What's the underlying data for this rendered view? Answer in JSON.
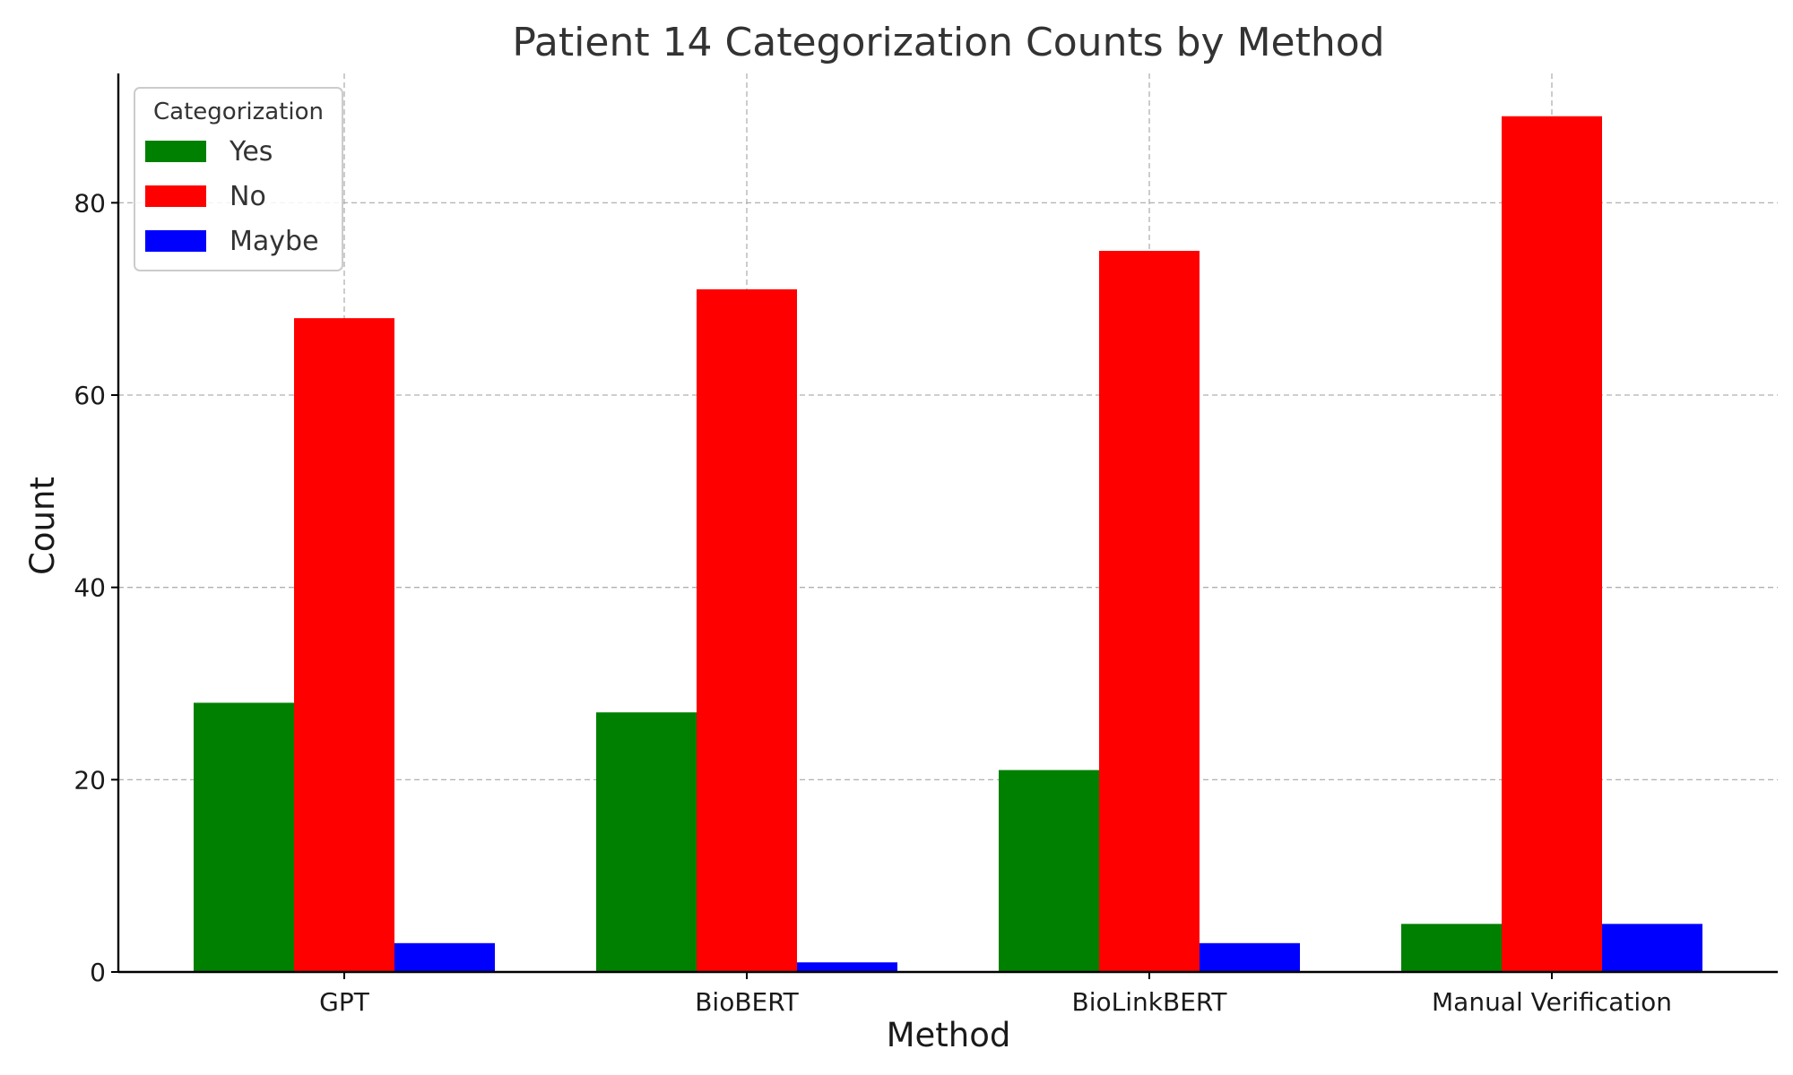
{
  "chart_data": {
    "type": "bar",
    "title": "Patient 14 Categorization Counts by Method",
    "xlabel": "Method",
    "ylabel": "Count",
    "categories": [
      "GPT",
      "BioBERT",
      "BioLinkBERT",
      "Manual Verification"
    ],
    "series": [
      {
        "name": "Yes",
        "color": "#008000",
        "values": [
          28,
          27,
          21,
          5
        ]
      },
      {
        "name": "No",
        "color": "#ff0000",
        "values": [
          68,
          71,
          75,
          89
        ]
      },
      {
        "name": "Maybe",
        "color": "#0000ff",
        "values": [
          3,
          1,
          3,
          5
        ]
      }
    ],
    "ylim": [
      0,
      93.45
    ],
    "yticks": [
      0,
      20,
      40,
      60,
      80
    ],
    "grid": true,
    "legend": {
      "title": "Categorization",
      "position": "top-left"
    }
  }
}
